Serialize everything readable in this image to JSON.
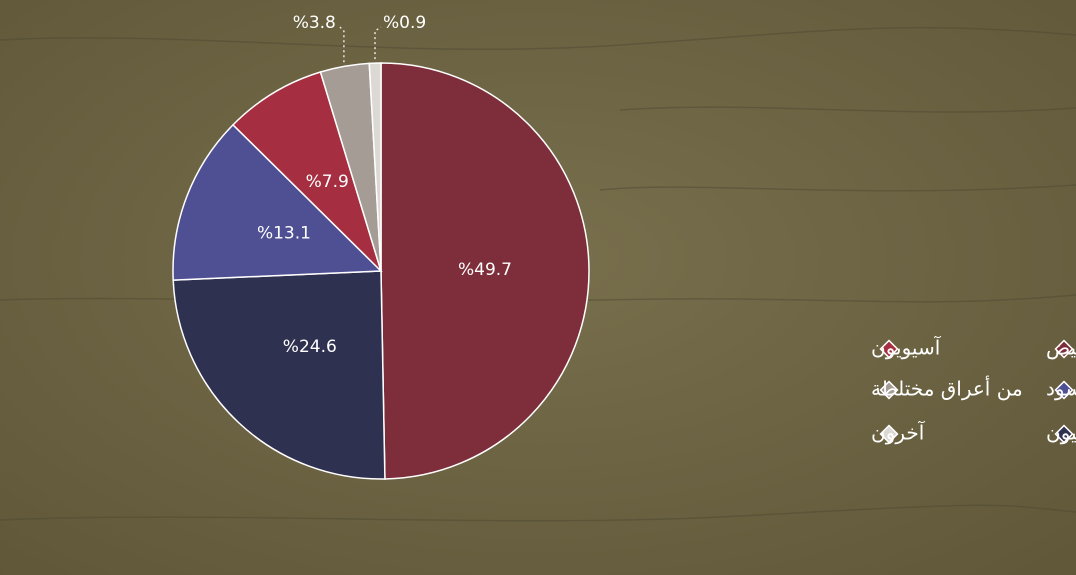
{
  "chart_data": {
    "type": "pie",
    "categories": [
      "بيض",
      "مكسيكيون",
      "سود",
      "آسيويون",
      "من أعراق مختلطة",
      "آخرون"
    ],
    "values": [
      49.7,
      24.6,
      13.1,
      7.9,
      3.8,
      0.9
    ],
    "value_labels": [
      "%49.7",
      "%24.6",
      "%13.1",
      "%7.9",
      "%3.8",
      "%0.9"
    ],
    "colors": [
      "#7e2d3b",
      "#2f3150",
      "#4f4f94",
      "#a52f40",
      "#a69c96",
      "#dcd8d4"
    ]
  }
}
